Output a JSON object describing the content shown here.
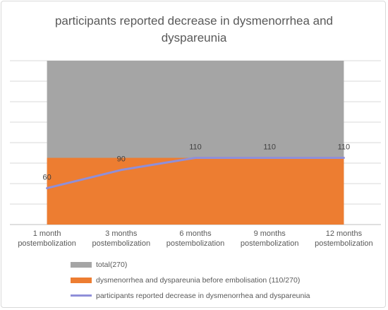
{
  "chart_data": {
    "type": "area",
    "title": "participants reported decrease in dysmenorrhea and dyspareunia",
    "categories": [
      [
        "1 month",
        "postembolization"
      ],
      [
        "3 months",
        "postembolization"
      ],
      [
        "6 months",
        "postembolization"
      ],
      [
        "9 months",
        "postembolization"
      ],
      [
        "12 months",
        "postembolization"
      ]
    ],
    "ylim": [
      0,
      270
    ],
    "grid": true,
    "legend_position": "bottom",
    "series": [
      {
        "name": "total(270)",
        "kind": "area",
        "color": "#a5a5a5",
        "values": [
          270,
          270,
          270,
          270,
          270
        ]
      },
      {
        "name": "dysmenorrhea and dyspareunia before embolisation (110/270)",
        "kind": "area",
        "color": "#ed7d31",
        "values": [
          110,
          110,
          110,
          110,
          110
        ]
      },
      {
        "name": "participants reported decrease in dysmenorrhea and dyspareunia",
        "kind": "line",
        "color": "#8f8fd9",
        "values": [
          60,
          90,
          110,
          110,
          110
        ],
        "data_labels": [
          "60",
          "90",
          "110",
          "110",
          "110"
        ]
      }
    ]
  }
}
